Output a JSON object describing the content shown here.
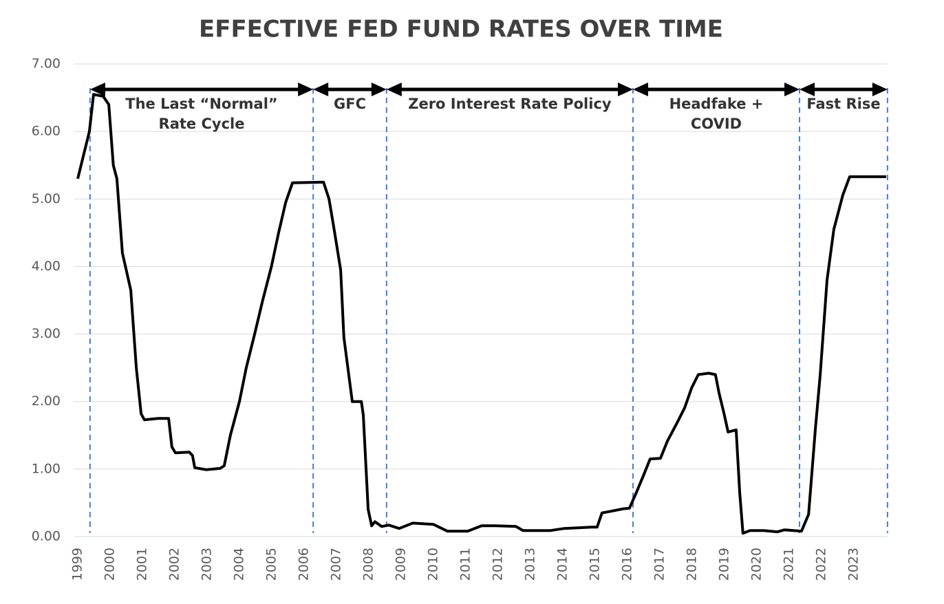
{
  "chart_data": {
    "type": "line",
    "title": "EFFECTIVE FED FUND RATES OVER TIME",
    "x": [
      1999.0,
      1999.36,
      1999.49,
      1999.79,
      1999.96,
      2000.1,
      2000.21,
      2000.38,
      2000.64,
      2000.81,
      2000.96,
      2001.06,
      2001.49,
      2001.81,
      2001.91,
      2002.02,
      2002.45,
      2002.55,
      2002.62,
      2002.98,
      2003.4,
      2003.53,
      2003.72,
      2004.0,
      2004.21,
      2004.47,
      2004.72,
      2004.99,
      2005.21,
      2005.43,
      2005.64,
      2006.6,
      2006.77,
      2006.91,
      2007.13,
      2007.23,
      2007.49,
      2007.77,
      2007.83,
      2007.98,
      2008.09,
      2008.19,
      2008.4,
      2008.62,
      2008.94,
      2009.36,
      2010.0,
      2010.43,
      2011.06,
      2011.49,
      2011.91,
      2012.55,
      2012.77,
      2013.62,
      2014.04,
      2014.89,
      2015.06,
      2015.21,
      2015.43,
      2015.85,
      2016.06,
      2016.28,
      2016.49,
      2016.7,
      2017.02,
      2017.23,
      2017.55,
      2017.77,
      2017.98,
      2018.19,
      2018.51,
      2018.72,
      2018.83,
      2018.98,
      2019.11,
      2019.36,
      2019.47,
      2019.57,
      2019.79,
      2020.21,
      2020.64,
      2020.85,
      2021.38,
      2021.6,
      2021.81,
      2021.96,
      2022.17,
      2022.38,
      2022.66,
      2022.87,
      2024.0
    ],
    "values": [
      5.3,
      6.0,
      6.55,
      6.52,
      6.4,
      5.5,
      5.3,
      4.2,
      3.65,
      2.5,
      1.82,
      1.73,
      1.75,
      1.75,
      1.33,
      1.24,
      1.25,
      1.2,
      1.02,
      0.99,
      1.01,
      1.05,
      1.5,
      2.0,
      2.5,
      3.0,
      3.5,
      4.0,
      4.5,
      4.95,
      5.24,
      5.25,
      5.0,
      4.6,
      3.95,
      2.95,
      2.0,
      2.0,
      1.8,
      0.4,
      0.16,
      0.22,
      0.15,
      0.17,
      0.12,
      0.2,
      0.18,
      0.08,
      0.08,
      0.16,
      0.16,
      0.15,
      0.09,
      0.09,
      0.12,
      0.14,
      0.14,
      0.35,
      0.37,
      0.41,
      0.42,
      0.66,
      0.9,
      1.15,
      1.16,
      1.41,
      1.7,
      1.91,
      2.2,
      2.4,
      2.42,
      2.4,
      2.13,
      1.83,
      1.55,
      1.58,
      0.65,
      0.05,
      0.09,
      0.09,
      0.07,
      0.1,
      0.08,
      0.33,
      1.6,
      2.4,
      3.8,
      4.55,
      5.06,
      5.33,
      5.33
    ],
    "color": "#000000",
    "xlim": [
      1999,
      2024
    ],
    "xticks": [
      1999,
      2000,
      2001,
      2002,
      2003,
      2004,
      2005,
      2006,
      2007,
      2008,
      2009,
      2010,
      2011,
      2012,
      2013,
      2014,
      2015,
      2016,
      2017,
      2018,
      2019,
      2020,
      2021,
      2022,
      2023
    ],
    "ylim": [
      0,
      7
    ],
    "yticks": [
      {
        "value": 0,
        "label": "0.00"
      },
      {
        "value": 1,
        "label": "1.00"
      },
      {
        "value": 2,
        "label": "2.00"
      },
      {
        "value": 3,
        "label": "3.00"
      },
      {
        "value": 4,
        "label": "4.00"
      },
      {
        "value": 5,
        "label": "5.00"
      },
      {
        "value": 6,
        "label": "6.00"
      },
      {
        "value": 7,
        "label": "7.00"
      }
    ],
    "grid": true,
    "phase_boundaries": [
      1999.38,
      2006.28,
      2008.55,
      2016.17,
      2021.32,
      2024.04
    ],
    "phase_color": "#4a7bd6",
    "phases": [
      {
        "label": [
          "The Last “Normal”",
          "Rate Cycle"
        ]
      },
      {
        "label": [
          "GFC"
        ]
      },
      {
        "label": [
          "Zero Interest Rate Policy"
        ]
      },
      {
        "label": [
          "Headfake +",
          "COVID"
        ]
      },
      {
        "label": [
          "Fast Rise"
        ]
      }
    ]
  }
}
